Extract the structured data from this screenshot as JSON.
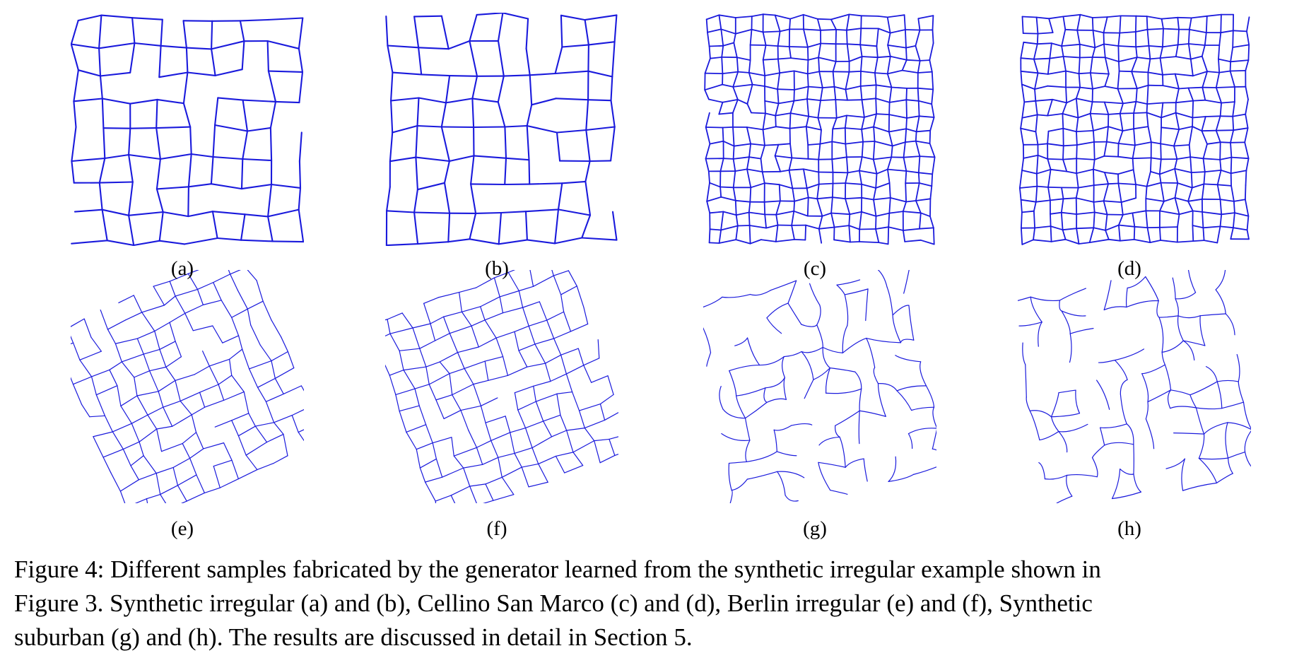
{
  "figure": {
    "panels": [
      {
        "label": "(a)",
        "style": "grid"
      },
      {
        "label": "(b)",
        "style": "grid"
      },
      {
        "label": "(c)",
        "style": "dense"
      },
      {
        "label": "(d)",
        "style": "dense"
      },
      {
        "label": "(e)",
        "style": "rotated"
      },
      {
        "label": "(f)",
        "style": "rotated"
      },
      {
        "label": "(g)",
        "style": "suburban"
      },
      {
        "label": "(h)",
        "style": "suburban"
      }
    ],
    "line_color": "#1a1adc",
    "caption": {
      "line1": "Figure 4:  Different samples fabricated by the generator learned from the synthetic irregular example shown in",
      "line2": "Figure 3.  Synthetic irregular (a) and (b), Cellino San Marco (c) and (d), Berlin irregular (e) and (f), Synthetic",
      "line3": "suburban (g) and (h). The results are discussed in detail in Section 5."
    }
  }
}
